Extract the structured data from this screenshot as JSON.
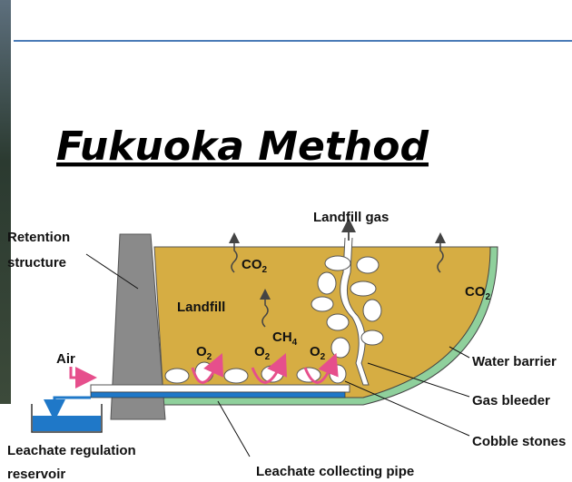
{
  "header": {
    "title": "Fukuoka Method"
  },
  "diagram": {
    "landfill_gas": "Landfill gas",
    "retention_structure": [
      "Retention",
      "structure"
    ],
    "landfill": "Landfill",
    "co2_left": {
      "base": "CO",
      "sub": "2"
    },
    "co2_right": {
      "base": "CO",
      "sub": "2"
    },
    "ch4": {
      "base": "CH",
      "sub": "4"
    },
    "o2_1": {
      "base": "O",
      "sub": "2"
    },
    "o2_2": {
      "base": "O",
      "sub": "2"
    },
    "o2_3": {
      "base": "O",
      "sub": "2"
    },
    "air": "Air",
    "water_barrier": "Water barrier",
    "gas_bleeder": "Gas bleeder",
    "cobble_stones": "Cobble stones",
    "leachate_reservoir": [
      "Leachate regulation",
      "reservoir"
    ],
    "leachate_pipe": "Leachate collecting pipe"
  }
}
